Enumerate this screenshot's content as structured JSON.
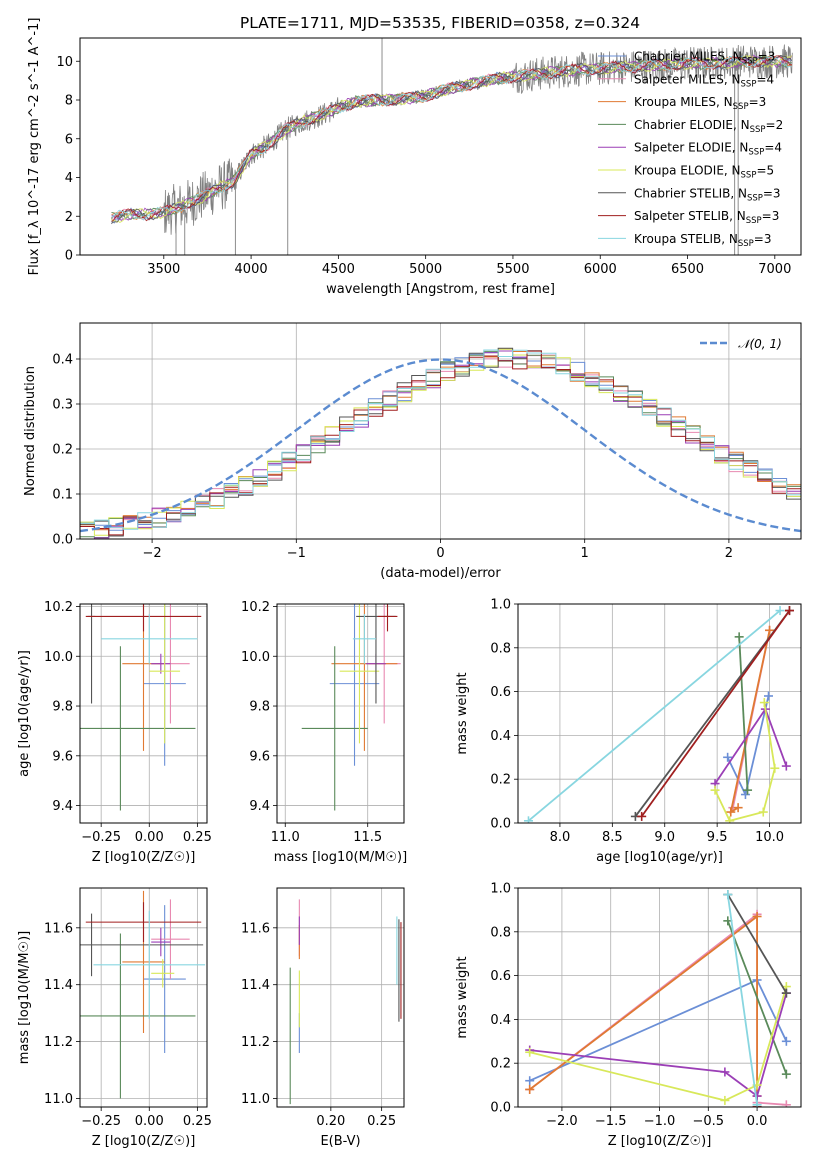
{
  "figure": {
    "title": "PLATE=1711, MJD=53535, FIBERID=0358, z=0.324",
    "colors": {
      "Chabrier MILES": "#6b8fd6",
      "Salpeter MILES": "#e889b1",
      "Kroupa MILES": "#e07a33",
      "Chabrier ELODIE": "#5a8a5a",
      "Salpeter ELODIE": "#9b3fb6",
      "Kroupa ELODIE": "#d8e85a",
      "Chabrier STELIB": "#555555",
      "Salpeter STELIB": "#a01f1f",
      "Kroupa STELIB": "#88d6e0",
      "data": "#808080"
    }
  },
  "chart_data": [
    {
      "id": "spectrum",
      "type": "line",
      "xlabel": "wavelength [Angstrom, rest frame]",
      "ylabel": "Flux [f_λ 10^-17 erg cm^-2 s^-1 A^-1]",
      "xlim": [
        3020,
        7150
      ],
      "ylim": [
        0,
        11.2
      ],
      "xticks": [
        3500,
        4000,
        4500,
        5000,
        5500,
        6000,
        6500,
        7000
      ],
      "yticks": [
        0,
        2,
        4,
        6,
        8,
        10
      ],
      "legend_position": "upper right",
      "grid": false,
      "legend": [
        {
          "name": "Chabrier MILES",
          "label": "Chabrier MILES, N",
          "sub": "SSP",
          "suffix": "=3"
        },
        {
          "name": "Salpeter MILES",
          "label": "Salpeter MILES, N",
          "sub": "SSP",
          "suffix": "=4"
        },
        {
          "name": "Kroupa MILES",
          "label": "Kroupa MILES, N",
          "sub": "SSP",
          "suffix": "=3"
        },
        {
          "name": "Chabrier ELODIE",
          "label": "Chabrier ELODIE, N",
          "sub": "SSP",
          "suffix": "=2"
        },
        {
          "name": "Salpeter ELODIE",
          "label": "Salpeter ELODIE, N",
          "sub": "SSP",
          "suffix": "=4"
        },
        {
          "name": "Kroupa ELODIE",
          "label": "Kroupa ELODIE, N",
          "sub": "SSP",
          "suffix": "=5"
        },
        {
          "name": "Chabrier STELIB",
          "label": "Chabrier STELIB, N",
          "sub": "SSP",
          "suffix": "=3"
        },
        {
          "name": "Salpeter STELIB",
          "label": "Salpeter STELIB, N",
          "sub": "SSP",
          "suffix": "=3"
        },
        {
          "name": "Kroupa STELIB",
          "label": "Kroupa STELIB, N",
          "sub": "SSP",
          "suffix": "=3"
        }
      ],
      "continuum_x": [
        3200,
        3300,
        3400,
        3500,
        3600,
        3700,
        3800,
        3900,
        4000,
        4100,
        4200,
        4300,
        4400,
        4500,
        4600,
        4700,
        4800,
        4900,
        5000,
        5100,
        5200,
        5300,
        5400,
        5500,
        5600,
        5700,
        5800,
        5900,
        6000,
        6100,
        6200,
        6300,
        6400,
        6500,
        6600,
        6700,
        6800,
        6900,
        7000,
        7100
      ],
      "continuum_y": [
        1.9,
        2.1,
        2.1,
        2.2,
        2.5,
        2.9,
        3.4,
        3.8,
        5.2,
        5.7,
        6.5,
        6.9,
        7.2,
        7.6,
        7.9,
        8.0,
        8.0,
        8.1,
        8.2,
        8.5,
        8.7,
        8.9,
        9.1,
        9.2,
        9.3,
        9.4,
        9.5,
        9.6,
        9.6,
        9.7,
        9.7,
        9.8,
        9.8,
        9.9,
        9.9,
        9.9,
        10.0,
        10.0,
        10.0,
        10.0
      ],
      "data_noise": [
        {
          "from": 3200,
          "to": 3500,
          "amp": 0.15
        },
        {
          "from": 3500,
          "to": 3900,
          "amp": 1.3
        },
        {
          "from": 3900,
          "to": 4500,
          "amp": 0.6
        },
        {
          "from": 4500,
          "to": 5500,
          "amp": 0.35
        },
        {
          "from": 5500,
          "to": 7100,
          "amp": 0.9
        }
      ],
      "spike_x": [
        3570,
        3620,
        3910,
        4210,
        4750,
        6770,
        6790
      ],
      "spike_y": [
        0.0,
        0.0,
        0.0,
        0.0,
        11.2,
        0.0,
        0.0
      ]
    },
    {
      "id": "residuals",
      "type": "step",
      "xlabel": "(data-model)/error",
      "ylabel": "Normed distribution",
      "xlim": [
        -2.5,
        2.5
      ],
      "ylim": [
        0,
        0.48
      ],
      "xticks": [
        -2,
        -1,
        0,
        1,
        2
      ],
      "yticks": [
        0.0,
        0.1,
        0.2,
        0.3,
        0.4
      ],
      "legend_position": "upper right",
      "legend": [
        {
          "name": "N(0,1)",
          "label": "𝒩(0, 1)"
        }
      ],
      "grid": true,
      "bin_width": 0.1,
      "base_counts": [
        0.018,
        0.022,
        0.028,
        0.034,
        0.041,
        0.048,
        0.057,
        0.066,
        0.078,
        0.09,
        0.104,
        0.119,
        0.136,
        0.153,
        0.172,
        0.19,
        0.21,
        0.23,
        0.25,
        0.27,
        0.29,
        0.308,
        0.327,
        0.343,
        0.358,
        0.372,
        0.383,
        0.392,
        0.398,
        0.402,
        0.4,
        0.398,
        0.392,
        0.383,
        0.372,
        0.358,
        0.343,
        0.327,
        0.308,
        0.29,
        0.27,
        0.25,
        0.23,
        0.21,
        0.19,
        0.172,
        0.153,
        0.136,
        0.119,
        0.104,
        0.09
      ]
    },
    {
      "id": "age-vs-Z",
      "type": "scatter",
      "xlabel": "Z [log10(Z/Z☉)]",
      "ylabel": "age [log10(age/yr)]",
      "xlim": [
        -0.36,
        0.3
      ],
      "ylim": [
        9.33,
        10.21
      ],
      "xticks": [
        -0.25,
        0.0,
        0.25
      ],
      "yticks": [
        9.4,
        9.6,
        9.8,
        10.0,
        10.2
      ],
      "grid": true,
      "points": [
        {
          "name": "Chabrier MILES",
          "x": 0.08,
          "y": 9.89,
          "xerr": 0.11,
          "yerr": 0.33
        },
        {
          "name": "Salpeter MILES",
          "x": 0.11,
          "y": 9.97,
          "xerr": 0.1,
          "yerr": 0.24
        },
        {
          "name": "Kroupa MILES",
          "x": -0.03,
          "y": 9.97,
          "xerr": 0.11,
          "yerr": 0.35
        },
        {
          "name": "Chabrier ELODIE",
          "x": -0.15,
          "y": 9.71,
          "xerr": 0.39,
          "yerr": 0.33
        },
        {
          "name": "Salpeter ELODIE",
          "x": 0.06,
          "y": 9.97,
          "xerr": 0.05,
          "yerr": 0.04
        },
        {
          "name": "Kroupa ELODIE",
          "x": 0.08,
          "y": 9.94,
          "xerr": 0.08,
          "yerr": 0.29
        },
        {
          "name": "Chabrier STELIB",
          "x": -0.3,
          "y": 10.16,
          "xerr": 0.02,
          "yerr": 0.35
        },
        {
          "name": "Salpeter STELIB",
          "x": -0.03,
          "y": 10.16,
          "xerr": 0.3,
          "yerr": 0.06
        },
        {
          "name": "Kroupa STELIB",
          "x": 0.0,
          "y": 10.07,
          "xerr": 0.25,
          "yerr": 0.1
        }
      ]
    },
    {
      "id": "age-vs-mass",
      "type": "scatter",
      "xlabel": "mass [log10(M/M☉)]",
      "ylabel": "",
      "xlim": [
        10.95,
        11.72
      ],
      "ylim": [
        9.33,
        10.21
      ],
      "xticks": [
        11.0,
        11.5
      ],
      "yticks": [
        9.4,
        9.6,
        9.8,
        10.0,
        10.2
      ],
      "grid": true,
      "points": [
        {
          "name": "Chabrier MILES",
          "x": 11.42,
          "y": 9.89,
          "xerr": 0.15,
          "yerr": 0.33
        },
        {
          "name": "Salpeter MILES",
          "x": 11.6,
          "y": 9.97,
          "xerr": 0.1,
          "yerr": 0.24
        },
        {
          "name": "Kroupa MILES",
          "x": 11.48,
          "y": 9.97,
          "xerr": 0.2,
          "yerr": 0.35
        },
        {
          "name": "Chabrier ELODIE",
          "x": 11.3,
          "y": 9.71,
          "xerr": 0.2,
          "yerr": 0.33
        },
        {
          "name": "Salpeter ELODIE",
          "x": 11.55,
          "y": 9.97,
          "xerr": 0.06,
          "yerr": 0.04
        },
        {
          "name": "Kroupa ELODIE",
          "x": 11.45,
          "y": 9.94,
          "xerr": 0.12,
          "yerr": 0.29
        },
        {
          "name": "Chabrier STELIB",
          "x": 11.55,
          "y": 10.16,
          "xerr": 0.12,
          "yerr": 0.35
        },
        {
          "name": "Salpeter STELIB",
          "x": 11.62,
          "y": 10.16,
          "xerr": 0.06,
          "yerr": 0.06
        },
        {
          "name": "Kroupa STELIB",
          "x": 11.48,
          "y": 10.07,
          "xerr": 0.07,
          "yerr": 0.1
        }
      ]
    },
    {
      "id": "weight-vs-age",
      "type": "line",
      "xlabel": "age [log10(age/yr)]",
      "ylabel": "mass weight",
      "xlim": [
        7.6,
        10.3
      ],
      "ylim": [
        0,
        1.0
      ],
      "xticks": [
        8.0,
        8.5,
        9.0,
        9.5,
        10.0
      ],
      "yticks": [
        0.0,
        0.2,
        0.4,
        0.6,
        0.8,
        1.0
      ],
      "grid": true,
      "series": [
        {
          "name": "Chabrier MILES",
          "x": [
            9.6,
            9.77,
            9.99
          ],
          "y": [
            0.3,
            0.13,
            0.58
          ]
        },
        {
          "name": "Salpeter MILES",
          "x": [
            9.65,
            10.0
          ],
          "y": [
            0.07,
            0.88
          ]
        },
        {
          "name": "Kroupa MILES",
          "x": [
            9.7,
            9.63,
            10.0
          ],
          "y": [
            0.07,
            0.05,
            0.88
          ]
        },
        {
          "name": "Chabrier ELODIE",
          "x": [
            9.71,
            9.79
          ],
          "y": [
            0.85,
            0.15
          ]
        },
        {
          "name": "Salpeter ELODIE",
          "x": [
            9.48,
            9.96,
            10.16
          ],
          "y": [
            0.18,
            0.52,
            0.26
          ]
        },
        {
          "name": "Kroupa ELODIE",
          "x": [
            9.48,
            9.62,
            9.94,
            10.05,
            9.95
          ],
          "y": [
            0.15,
            0.01,
            0.05,
            0.25,
            0.55
          ]
        },
        {
          "name": "Chabrier STELIB",
          "x": [
            8.72,
            10.19
          ],
          "y": [
            0.03,
            0.97
          ]
        },
        {
          "name": "Salpeter STELIB",
          "x": [
            8.78,
            10.19
          ],
          "y": [
            0.03,
            0.97
          ]
        },
        {
          "name": "Kroupa STELIB",
          "x": [
            7.7,
            10.1
          ],
          "y": [
            0.01,
            0.97
          ]
        }
      ]
    },
    {
      "id": "mass-vs-Z",
      "type": "scatter",
      "xlabel": "Z [log10(Z/Z☉)]",
      "ylabel": "mass [log10(M/M☉)]",
      "xlim": [
        -0.36,
        0.3
      ],
      "ylim": [
        10.97,
        11.74
      ],
      "xticks": [
        -0.25,
        0.0,
        0.25
      ],
      "yticks": [
        11.0,
        11.2,
        11.4,
        11.6
      ],
      "grid": true,
      "points": [
        {
          "name": "Chabrier MILES",
          "x": 0.08,
          "y": 11.42,
          "xerr": 0.11,
          "yerr": 0.26
        },
        {
          "name": "Salpeter MILES",
          "x": 0.11,
          "y": 11.56,
          "xerr": 0.1,
          "yerr": 0.14
        },
        {
          "name": "Kroupa MILES",
          "x": -0.03,
          "y": 11.48,
          "xerr": 0.11,
          "yerr": 0.25
        },
        {
          "name": "Chabrier ELODIE",
          "x": -0.15,
          "y": 11.29,
          "xerr": 0.39,
          "yerr": 0.29
        },
        {
          "name": "Salpeter ELODIE",
          "x": 0.06,
          "y": 11.55,
          "xerr": 0.05,
          "yerr": 0.05
        },
        {
          "name": "Kroupa ELODIE",
          "x": 0.07,
          "y": 11.44,
          "xerr": 0.06,
          "yerr": 0.05
        },
        {
          "name": "Chabrier STELIB",
          "x": -0.3,
          "y": 11.54,
          "xerr": 0.58,
          "yerr": 0.11
        },
        {
          "name": "Salpeter STELIB",
          "x": -0.03,
          "y": 11.62,
          "xerr": 0.3,
          "yerr": 0.07
        },
        {
          "name": "Kroupa STELIB",
          "x": 0.0,
          "y": 11.47,
          "xerr": 0.29,
          "yerr": 0.19
        }
      ]
    },
    {
      "id": "mass-vs-EBV",
      "type": "scatter",
      "xlabel": "E(B-V)",
      "ylabel": "",
      "xlim": [
        0.147,
        0.272
      ],
      "ylim": [
        10.97,
        11.74
      ],
      "xticks": [
        0.2,
        0.25
      ],
      "yticks": [
        11.0,
        11.2,
        11.4,
        11.6
      ],
      "grid": true,
      "points": [
        {
          "name": "Chabrier MILES",
          "x": 0.169,
          "y": 11.23,
          "xerr": 0.0,
          "yerr": 0.07
        },
        {
          "name": "Salpeter MILES",
          "x": 0.169,
          "y": 11.6,
          "xerr": 0.0,
          "yerr": 0.1
        },
        {
          "name": "Kroupa MILES",
          "x": 0.169,
          "y": 11.55,
          "xerr": 0.0,
          "yerr": 0.06
        },
        {
          "name": "Chabrier ELODIE",
          "x": 0.16,
          "y": 11.22,
          "xerr": 0.0,
          "yerr": 0.24
        },
        {
          "name": "Salpeter ELODIE",
          "x": 0.169,
          "y": 11.59,
          "xerr": 0.0,
          "yerr": 0.05
        },
        {
          "name": "Kroupa ELODIE",
          "x": 0.169,
          "y": 11.35,
          "xerr": 0.0,
          "yerr": 0.1
        },
        {
          "name": "Chabrier STELIB",
          "x": 0.267,
          "y": 11.45,
          "xerr": 0.0,
          "yerr": 0.18
        },
        {
          "name": "Salpeter STELIB",
          "x": 0.269,
          "y": 11.45,
          "xerr": 0.0,
          "yerr": 0.17
        },
        {
          "name": "Kroupa STELIB",
          "x": 0.265,
          "y": 11.52,
          "xerr": 0.0,
          "yerr": 0.12
        }
      ]
    },
    {
      "id": "weight-vs-Z",
      "type": "line",
      "xlabel": "Z [log10(Z/Z☉)]",
      "ylabel": "mass weight",
      "xlim": [
        -2.45,
        0.45
      ],
      "ylim": [
        0,
        1.0
      ],
      "xticks": [
        -2.0,
        -1.5,
        -1.0,
        -0.5,
        0.0
      ],
      "yticks": [
        0.0,
        0.2,
        0.4,
        0.6,
        0.8,
        1.0
      ],
      "grid": true,
      "series": [
        {
          "name": "Chabrier MILES",
          "x": [
            -2.33,
            0.0,
            0.3
          ],
          "y": [
            0.12,
            0.58,
            0.3
          ]
        },
        {
          "name": "Salpeter MILES",
          "x": [
            -2.33,
            0.0,
            0.0,
            0.3
          ],
          "y": [
            0.08,
            0.88,
            0.02,
            0.01
          ]
        },
        {
          "name": "Kroupa MILES",
          "x": [
            -2.33,
            0.0,
            0.0
          ],
          "y": [
            0.08,
            0.87,
            0.05
          ]
        },
        {
          "name": "Chabrier ELODIE",
          "x": [
            -0.3,
            0.3
          ],
          "y": [
            0.85,
            0.15
          ]
        },
        {
          "name": "Salpeter ELODIE",
          "x": [
            -2.33,
            -0.33,
            0.0,
            0.3
          ],
          "y": [
            0.26,
            0.16,
            0.05,
            0.52
          ]
        },
        {
          "name": "Kroupa ELODIE",
          "x": [
            -2.33,
            -0.33,
            0.0,
            0.3
          ],
          "y": [
            0.25,
            0.03,
            0.1,
            0.55
          ]
        },
        {
          "name": "Chabrier STELIB",
          "x": [
            -0.3,
            0.3
          ],
          "y": [
            0.97,
            0.52
          ]
        },
        {
          "name": "Salpeter STELIB",
          "x": [
            0.0,
            0.0
          ],
          "y": [
            0.0,
            0.0
          ]
        },
        {
          "name": "Kroupa STELIB",
          "x": [
            -0.3,
            0.0
          ],
          "y": [
            0.97,
            0.01
          ]
        }
      ]
    }
  ]
}
